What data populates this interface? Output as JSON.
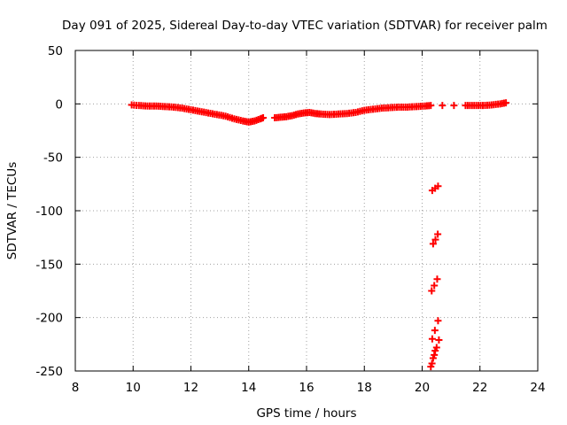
{
  "chart_data": {
    "type": "scatter",
    "title": "Day 091 of 2025, Sidereal Day-to-day VTEC variation (SDTVAR) for receiver palm",
    "xlabel": "GPS time / hours",
    "ylabel": "SDTVAR / TECUs",
    "xlim": [
      8,
      24
    ],
    "ylim": [
      -250,
      50
    ],
    "xticks": [
      8,
      10,
      12,
      14,
      16,
      18,
      20,
      22,
      24
    ],
    "yticks": [
      -250,
      -200,
      -150,
      -100,
      -50,
      0,
      50
    ],
    "grid": true,
    "marker": "plus",
    "color": "#ff0000",
    "series": [
      {
        "name": "SDTVAR",
        "x": [
          9.95,
          10.2,
          10.5,
          10.8,
          11.1,
          11.4,
          11.7,
          12.0,
          12.3,
          12.6,
          12.9,
          13.2,
          13.5,
          13.8,
          14.0,
          14.2,
          14.4,
          14.5,
          14.9,
          15.1,
          15.3,
          15.5,
          15.7,
          15.9,
          16.1,
          16.3,
          16.5,
          16.8,
          17.1,
          17.4,
          17.7,
          18.0,
          18.3,
          18.6,
          18.9,
          19.2,
          19.5,
          19.8,
          20.1,
          20.3,
          20.7,
          21.1,
          21.5,
          21.8,
          22.1,
          22.4,
          22.7,
          22.9,
          20.35,
          20.45,
          20.55,
          20.38,
          20.46,
          20.54,
          20.33,
          20.42,
          20.52,
          20.35,
          20.44,
          20.55,
          20.34,
          20.42,
          20.5,
          20.58,
          20.3,
          20.38,
          20.45
        ],
        "y": [
          -1,
          -1.5,
          -2,
          -2,
          -2.5,
          -3,
          -4,
          -5.5,
          -7,
          -8.5,
          -10,
          -11.5,
          -14,
          -16,
          -17,
          -16,
          -14,
          -13,
          -13,
          -12.5,
          -12,
          -11,
          -9.5,
          -8.5,
          -8,
          -9,
          -9.5,
          -10,
          -9.5,
          -9,
          -8,
          -6,
          -5,
          -4,
          -3.5,
          -3,
          -3,
          -2.5,
          -2,
          -1.5,
          -1.5,
          -1.5,
          -1.5,
          -1.5,
          -1.5,
          -1,
          0,
          1,
          -81,
          -79,
          -77,
          -131,
          -127,
          -122,
          -175,
          -170,
          -164,
          -220,
          -212,
          -203,
          -243,
          -235,
          -228,
          -221,
          -246,
          -238,
          -231
        ]
      }
    ]
  }
}
